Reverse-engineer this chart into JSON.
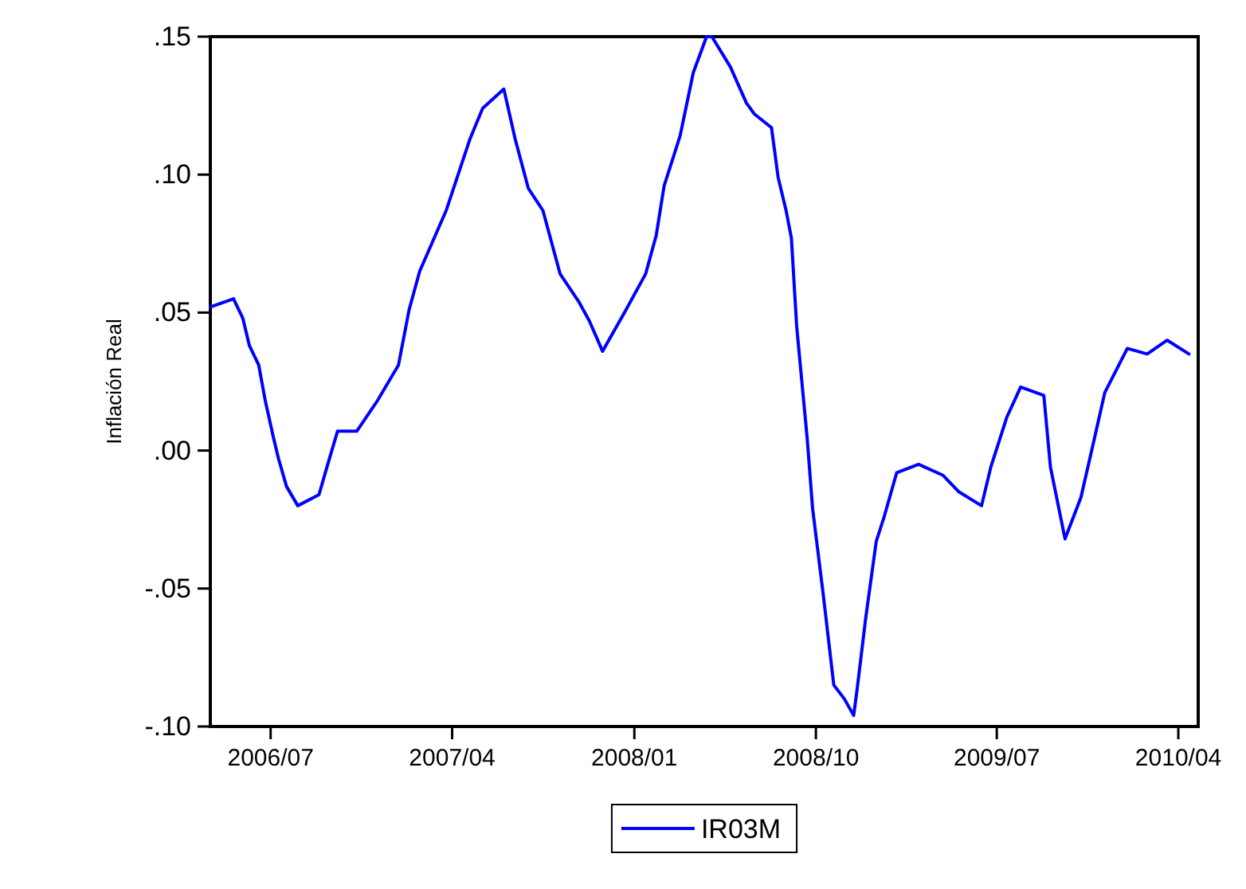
{
  "chart_data": {
    "type": "line",
    "ylabel": "Inflación Real",
    "xlim": [
      "2006-04-01",
      "2010-05-01"
    ],
    "xticks": [
      {
        "value": "2006-07-01",
        "label": "2006/07"
      },
      {
        "value": "2007-04-01",
        "label": "2007/04"
      },
      {
        "value": "2008-01-01",
        "label": "2008/01"
      },
      {
        "value": "2008-10-01",
        "label": "2008/10"
      },
      {
        "value": "2009-07-01",
        "label": "2009/07"
      },
      {
        "value": "2010-04-01",
        "label": "2010/04"
      }
    ],
    "ylim": [
      -0.1,
      0.15
    ],
    "yticks": [
      {
        "value": -0.1,
        "label": "-.10"
      },
      {
        "value": -0.05,
        "label": "-.05"
      },
      {
        "value": 0,
        "label": ".00"
      },
      {
        "value": 0.05,
        "label": ".05"
      },
      {
        "value": 0.1,
        "label": ".10"
      },
      {
        "value": 0.15,
        "label": ".15"
      }
    ],
    "grid": false,
    "legend": "bottom",
    "marker": "none",
    "line_style": "solid",
    "series": [
      {
        "name": "IR03M",
        "color": "#0000ff",
        "x": [
          "2006-04-01",
          "2006-05-06",
          "2006-05-20",
          "2006-05-30",
          "2006-06-13",
          "2006-06-23",
          "2006-07-05",
          "2006-07-13",
          "2006-07-25",
          "2006-08-11",
          "2006-09-12",
          "2006-09-24",
          "2006-10-10",
          "2006-11-08",
          "2006-12-09",
          "2007-01-10",
          "2007-01-26",
          "2007-02-11",
          "2007-03-23",
          "2007-04-28",
          "2007-05-17",
          "2007-06-18",
          "2007-07-05",
          "2007-07-25",
          "2007-08-16",
          "2007-09-11",
          "2007-10-09",
          "2007-10-25",
          "2007-11-14",
          "2007-12-17",
          "2008-01-18",
          "2008-02-03",
          "2008-02-15",
          "2008-03-10",
          "2008-03-30",
          "2008-04-19",
          "2008-04-27",
          "2008-05-25",
          "2008-06-18",
          "2008-06-30",
          "2008-07-26",
          "2008-08-05",
          "2008-08-17",
          "2008-08-25",
          "2008-09-02",
          "2008-09-18",
          "2008-09-26",
          "2008-10-12",
          "2008-10-28",
          "2008-11-13",
          "2008-11-27",
          "2008-12-03",
          "2008-12-15",
          "2008-12-31",
          "2009-01-12",
          "2009-01-31",
          "2009-03-05",
          "2009-04-11",
          "2009-05-05",
          "2009-06-08",
          "2009-06-22",
          "2009-07-16",
          "2009-08-06",
          "2009-09-10",
          "2009-09-20",
          "2009-10-12",
          "2009-11-05",
          "2009-11-25",
          "2009-12-11",
          "2010-01-14",
          "2010-02-13",
          "2010-03-15",
          "2010-04-17"
        ],
        "values": [
          0.052,
          0.055,
          0.048,
          0.038,
          0.031,
          0.018,
          0.005,
          -0.003,
          -0.013,
          -0.02,
          -0.016,
          -0.006,
          0.007,
          0.007,
          0.018,
          0.031,
          0.051,
          0.065,
          0.087,
          0.113,
          0.124,
          0.131,
          0.113,
          0.095,
          0.087,
          0.064,
          0.054,
          0.047,
          0.036,
          0.05,
          0.064,
          0.078,
          0.096,
          0.114,
          0.137,
          0.15,
          0.15,
          0.139,
          0.126,
          0.122,
          0.117,
          0.099,
          0.087,
          0.077,
          0.045,
          0.004,
          -0.021,
          -0.052,
          -0.085,
          -0.09,
          -0.096,
          -0.085,
          -0.061,
          -0.033,
          -0.024,
          -0.008,
          -0.005,
          -0.009,
          -0.015,
          -0.02,
          -0.006,
          0.012,
          0.023,
          0.02,
          -0.006,
          -0.032,
          -0.017,
          0.004,
          0.021,
          0.037,
          0.035,
          0.04,
          0.035
        ]
      }
    ]
  }
}
